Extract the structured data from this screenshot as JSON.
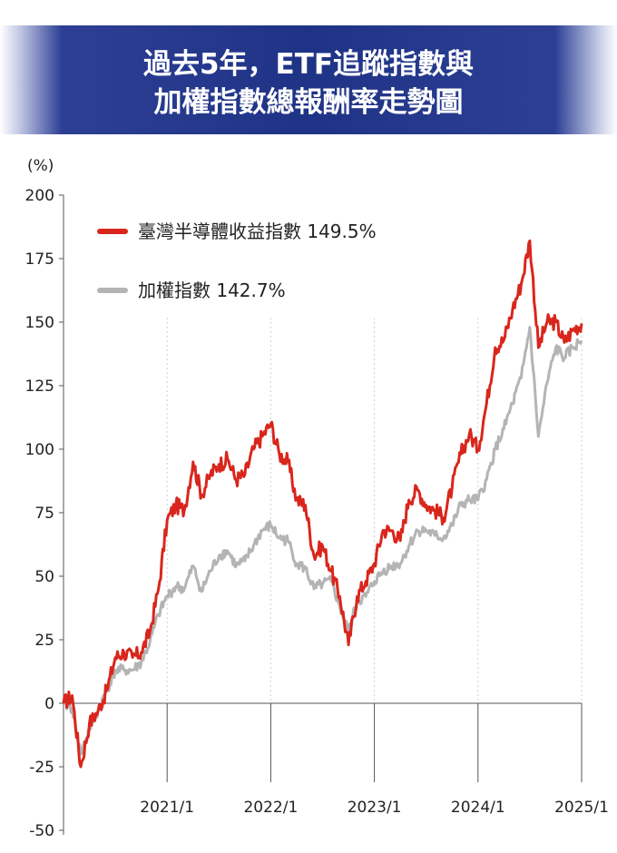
{
  "header": {
    "title": "過去5年，ETF追蹤指數與\n加權指數總報酬率走勢圖"
  },
  "chart_data": {
    "type": "line",
    "title": "過去5年，ETF追蹤指數與加權指數總報酬率走勢圖",
    "ylabel": "(%)",
    "xlabel": "",
    "ylim": [
      -50,
      200
    ],
    "yticks": [
      -50,
      -25,
      0,
      25,
      50,
      75,
      100,
      125,
      150,
      175,
      200
    ],
    "xlim": [
      "2020/1",
      "2025/1"
    ],
    "xticks": [
      "2021/1",
      "2022/1",
      "2023/1",
      "2024/1",
      "2025/1"
    ],
    "grid": "vertical dotted lines at x ticks",
    "legend_position": "top-left",
    "series": [
      {
        "name": "臺灣半導體收益指數",
        "final_label": "149.5%",
        "color": "#d9261c",
        "points": [
          [
            "2020/1",
            0
          ],
          [
            "2020/2",
            3
          ],
          [
            "2020/3",
            -25
          ],
          [
            "2020/4",
            -8
          ],
          [
            "2020/5",
            -3
          ],
          [
            "2020/6",
            5
          ],
          [
            "2020/7",
            18
          ],
          [
            "2020/8",
            20
          ],
          [
            "2020/9",
            18
          ],
          [
            "2020/10",
            20
          ],
          [
            "2020/11",
            28
          ],
          [
            "2020/12",
            45
          ],
          [
            "2021/1",
            72
          ],
          [
            "2021/2",
            78
          ],
          [
            "2021/3",
            76
          ],
          [
            "2021/4",
            95
          ],
          [
            "2021/5",
            82
          ],
          [
            "2021/6",
            90
          ],
          [
            "2021/7",
            94
          ],
          [
            "2021/8",
            96
          ],
          [
            "2021/9",
            88
          ],
          [
            "2021/10",
            90
          ],
          [
            "2021/11",
            100
          ],
          [
            "2021/12",
            105
          ],
          [
            "2022/1",
            110
          ],
          [
            "2022/2",
            98
          ],
          [
            "2022/3",
            95
          ],
          [
            "2022/4",
            80
          ],
          [
            "2022/5",
            78
          ],
          [
            "2022/6",
            58
          ],
          [
            "2022/7",
            62
          ],
          [
            "2022/8",
            52
          ],
          [
            "2022/9",
            42
          ],
          [
            "2022/10",
            23
          ],
          [
            "2022/11",
            42
          ],
          [
            "2022/12",
            48
          ],
          [
            "2023/1",
            55
          ],
          [
            "2023/2",
            68
          ],
          [
            "2023/3",
            68
          ],
          [
            "2023/4",
            64
          ],
          [
            "2023/5",
            80
          ],
          [
            "2023/6",
            84
          ],
          [
            "2023/7",
            78
          ],
          [
            "2023/8",
            76
          ],
          [
            "2023/9",
            73
          ],
          [
            "2023/10",
            85
          ],
          [
            "2023/11",
            98
          ],
          [
            "2023/12",
            106
          ],
          [
            "2024/1",
            100
          ],
          [
            "2024/2",
            118
          ],
          [
            "2024/3",
            140
          ],
          [
            "2024/4",
            143
          ],
          [
            "2024/5",
            155
          ],
          [
            "2024/6",
            165
          ],
          [
            "2024/7",
            182
          ],
          [
            "2024/8",
            140
          ],
          [
            "2024/9",
            150
          ],
          [
            "2024/10",
            150
          ],
          [
            "2024/11",
            142
          ],
          [
            "2024/12",
            147
          ],
          [
            "2025/1",
            149.5
          ]
        ]
      },
      {
        "name": "加權指數",
        "final_label": "142.7%",
        "color": "#b4b4b4",
        "points": [
          [
            "2020/1",
            0
          ],
          [
            "2020/2",
            -2
          ],
          [
            "2020/3",
            -20
          ],
          [
            "2020/4",
            -10
          ],
          [
            "2020/5",
            -3
          ],
          [
            "2020/6",
            5
          ],
          [
            "2020/7",
            13
          ],
          [
            "2020/8",
            13
          ],
          [
            "2020/9",
            13
          ],
          [
            "2020/10",
            16
          ],
          [
            "2020/11",
            24
          ],
          [
            "2020/12",
            35
          ],
          [
            "2021/1",
            42
          ],
          [
            "2021/2",
            46
          ],
          [
            "2021/3",
            45
          ],
          [
            "2021/4",
            54
          ],
          [
            "2021/5",
            44
          ],
          [
            "2021/6",
            52
          ],
          [
            "2021/7",
            58
          ],
          [
            "2021/8",
            60
          ],
          [
            "2021/9",
            54
          ],
          [
            "2021/10",
            56
          ],
          [
            "2021/11",
            62
          ],
          [
            "2021/12",
            68
          ],
          [
            "2022/1",
            70
          ],
          [
            "2022/2",
            65
          ],
          [
            "2022/3",
            64
          ],
          [
            "2022/4",
            55
          ],
          [
            "2022/5",
            53
          ],
          [
            "2022/6",
            45
          ],
          [
            "2022/7",
            47
          ],
          [
            "2022/8",
            48
          ],
          [
            "2022/9",
            38
          ],
          [
            "2022/10",
            28
          ],
          [
            "2022/11",
            40
          ],
          [
            "2022/12",
            42
          ],
          [
            "2023/1",
            48
          ],
          [
            "2023/2",
            52
          ],
          [
            "2023/3",
            54
          ],
          [
            "2023/4",
            55
          ],
          [
            "2023/5",
            62
          ],
          [
            "2023/6",
            68
          ],
          [
            "2023/7",
            68
          ],
          [
            "2023/8",
            66
          ],
          [
            "2023/9",
            65
          ],
          [
            "2023/10",
            70
          ],
          [
            "2023/11",
            78
          ],
          [
            "2023/12",
            80
          ],
          [
            "2024/1",
            80
          ],
          [
            "2024/2",
            88
          ],
          [
            "2024/3",
            100
          ],
          [
            "2024/4",
            108
          ],
          [
            "2024/5",
            118
          ],
          [
            "2024/6",
            128
          ],
          [
            "2024/7",
            148
          ],
          [
            "2024/8",
            105
          ],
          [
            "2024/9",
            126
          ],
          [
            "2024/10",
            140
          ],
          [
            "2024/11",
            136
          ],
          [
            "2024/12",
            140
          ],
          [
            "2025/1",
            142.7
          ]
        ]
      }
    ]
  }
}
